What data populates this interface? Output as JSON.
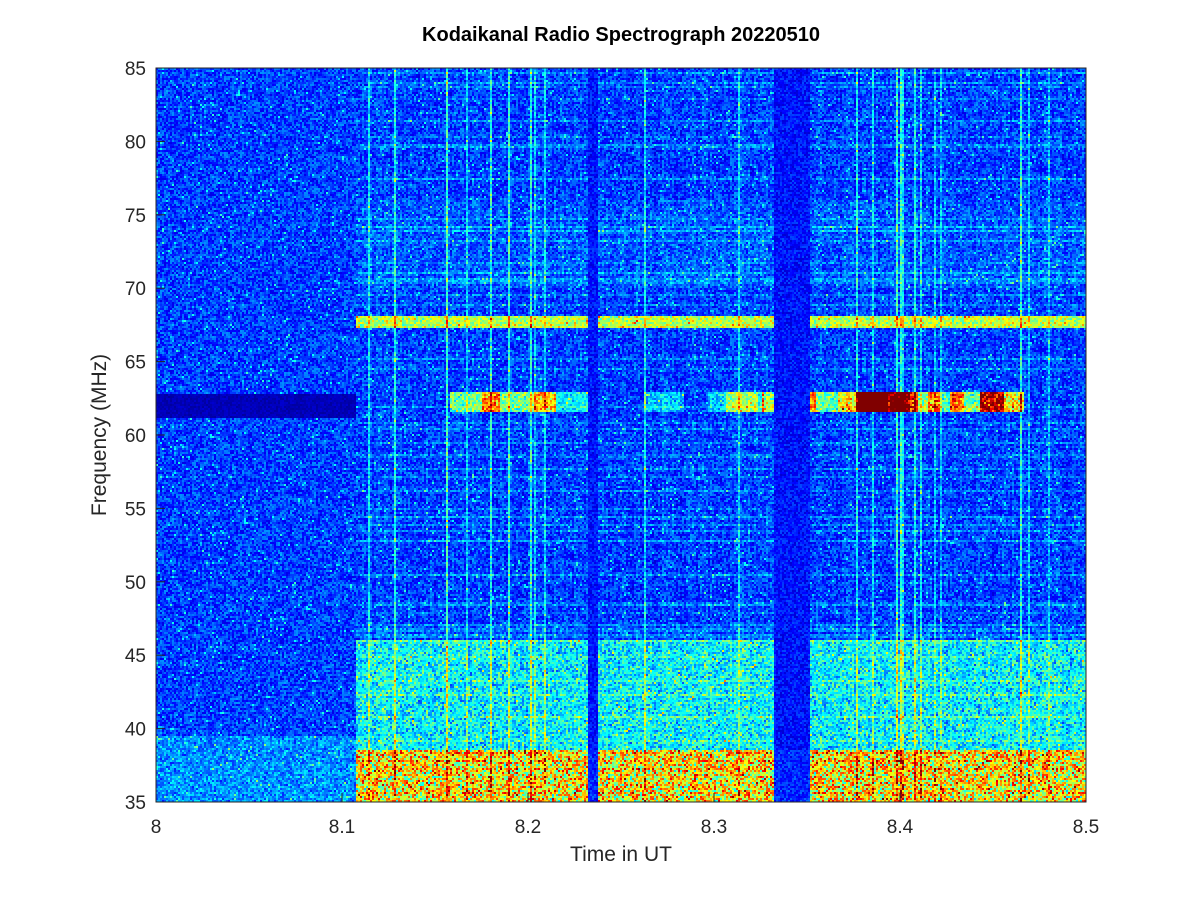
{
  "chart_data": {
    "type": "heatmap",
    "title": "Kodaikanal Radio Spectrograph  20220510",
    "xlabel": "Time in UT",
    "ylabel": "Frequency (MHz)",
    "xlim": [
      8,
      8.5
    ],
    "ylim": [
      35,
      85
    ],
    "x_ticks": [
      "8",
      "8.1",
      "8.2",
      "8.3",
      "8.4",
      "8.5"
    ],
    "y_ticks": [
      "35",
      "40",
      "45",
      "50",
      "55",
      "60",
      "65",
      "70",
      "75",
      "80",
      "85"
    ],
    "colormap": "jet",
    "grid": false,
    "colors": {
      "background": "#00109a",
      "low": "#00008f",
      "high": "#b00000"
    },
    "features": [
      {
        "kind": "onset",
        "time": 8.107
      },
      {
        "kind": "data-gap",
        "t0": 8.232,
        "t1": 8.238
      },
      {
        "kind": "data-gap",
        "t0": 8.332,
        "t1": 8.352
      },
      {
        "kind": "narrowband-line",
        "freq": 67.7,
        "t0": 8.107,
        "t1": 8.495
      },
      {
        "kind": "dark-band",
        "freq": 62,
        "t0": 8.0,
        "t1": 8.107
      },
      {
        "kind": "bright-patches",
        "freq": 62.2,
        "t0": 8.16,
        "t1": 8.47
      },
      {
        "kind": "strong-emission",
        "f0": 35,
        "f1": 38.5,
        "t0": 8.107,
        "t1": 8.5
      },
      {
        "kind": "moderate-emission",
        "f0": 38.5,
        "f1": 46,
        "t0": 8.107,
        "t1": 8.5
      }
    ]
  }
}
